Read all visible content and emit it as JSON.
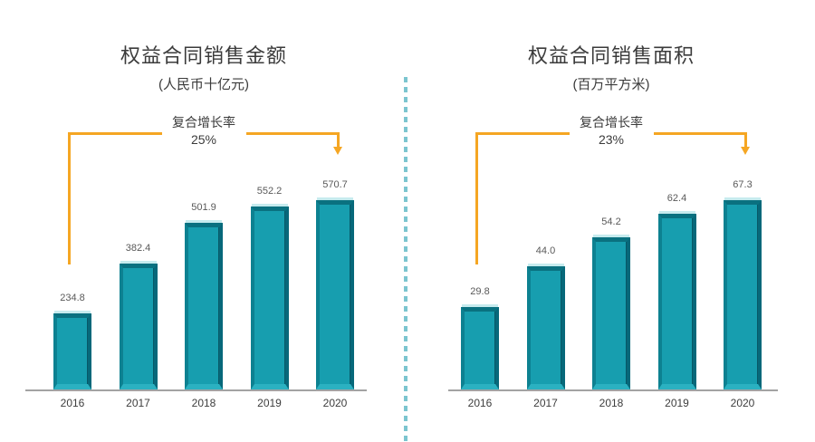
{
  "chart_data": [
    {
      "type": "bar",
      "title": "权益合同销售金额",
      "subtitle": "(人民币十亿元)",
      "annotation": {
        "label": "复合增长率",
        "value": "25%"
      },
      "categories": [
        "2016",
        "2017",
        "2018",
        "2019",
        "2020"
      ],
      "values": [
        234.8,
        382.4,
        501.9,
        552.2,
        570.7
      ],
      "value_labels": [
        "234.8",
        "382.4",
        "501.9",
        "552.2",
        "570.7"
      ],
      "ylim": [
        0,
        600
      ],
      "grid": false,
      "legend": false
    },
    {
      "type": "bar",
      "title": "权益合同销售面积",
      "subtitle": "(百万平方米)",
      "annotation": {
        "label": "复合增长率",
        "value": "23%"
      },
      "categories": [
        "2016",
        "2017",
        "2018",
        "2019",
        "2020"
      ],
      "values": [
        29.8,
        44.0,
        54.2,
        62.4,
        67.3
      ],
      "value_labels": [
        "29.8",
        "44.0",
        "54.2",
        "62.4",
        "67.3"
      ],
      "ylim": [
        0,
        70
      ],
      "grid": false,
      "legend": false
    }
  ],
  "colors": {
    "bar_body": "#179EAF",
    "bar_bevel_top": "#0A7180",
    "bar_bevel_left": "#0D8191",
    "bar_bevel_right": "#07687A",
    "bar_bevel_bottom": "#2BB1C1",
    "bar_top_highlight": "#C6EBEE",
    "arrow": "#F5A623",
    "axis": "#A3A3A3",
    "divider": "#7CC5CF",
    "value_label": "#595959",
    "tick_label": "#3D3D3D",
    "title": "#3B3B3B"
  }
}
